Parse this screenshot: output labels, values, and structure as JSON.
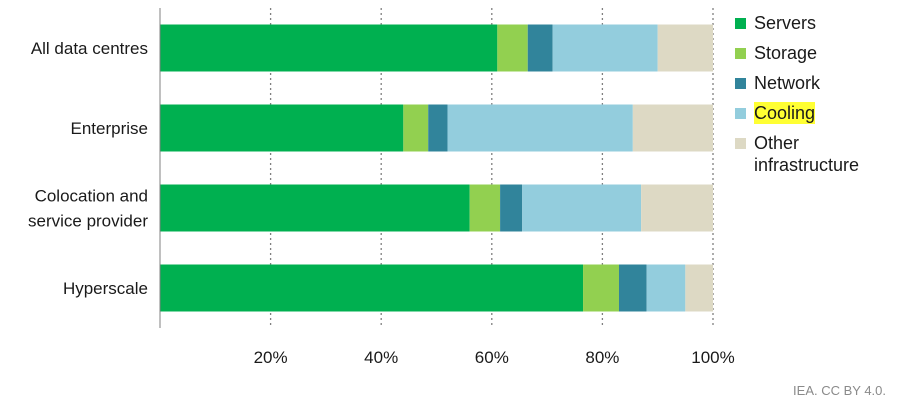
{
  "chart_data": {
    "type": "bar",
    "orientation": "horizontal",
    "stacked": true,
    "categories": [
      [
        "All data centres"
      ],
      [
        "Enterprise"
      ],
      [
        "Colocation and",
        "service provider"
      ],
      [
        "Hyperscale"
      ]
    ],
    "series": [
      {
        "name": "Servers",
        "color": "#00b050",
        "values": [
          61,
          44,
          56,
          76.5
        ]
      },
      {
        "name": "Storage",
        "color": "#92d050",
        "values": [
          5.5,
          4.5,
          5.5,
          6.5
        ]
      },
      {
        "name": "Network",
        "color": "#31849b",
        "values": [
          4.5,
          3.5,
          4,
          5
        ]
      },
      {
        "name": "Cooling",
        "color": "#93cddd",
        "values": [
          19,
          33.5,
          21.5,
          7
        ]
      },
      {
        "name": "Other infrastructure",
        "color": "#ddd9c4",
        "values": [
          10,
          14.5,
          13,
          5
        ]
      }
    ],
    "xlim": [
      0,
      100
    ],
    "xticks": [
      20,
      40,
      60,
      80,
      100
    ],
    "xtick_labels": [
      "20%",
      "40%",
      "60%",
      "80%",
      "100%"
    ],
    "grid": "vertical dotted",
    "legend_position": "right",
    "highlighted_legend_entry": "Cooling"
  },
  "legend": [
    {
      "label": "Servers",
      "color": "#00b050"
    },
    {
      "label": "Storage",
      "color": "#92d050"
    },
    {
      "label": "Network",
      "color": "#31849b"
    },
    {
      "label": "Cooling",
      "color": "#93cddd",
      "highlight": true
    },
    {
      "label": "Other infrastructure",
      "color": "#ddd9c4"
    }
  ],
  "source": "IEA. CC BY 4.0."
}
